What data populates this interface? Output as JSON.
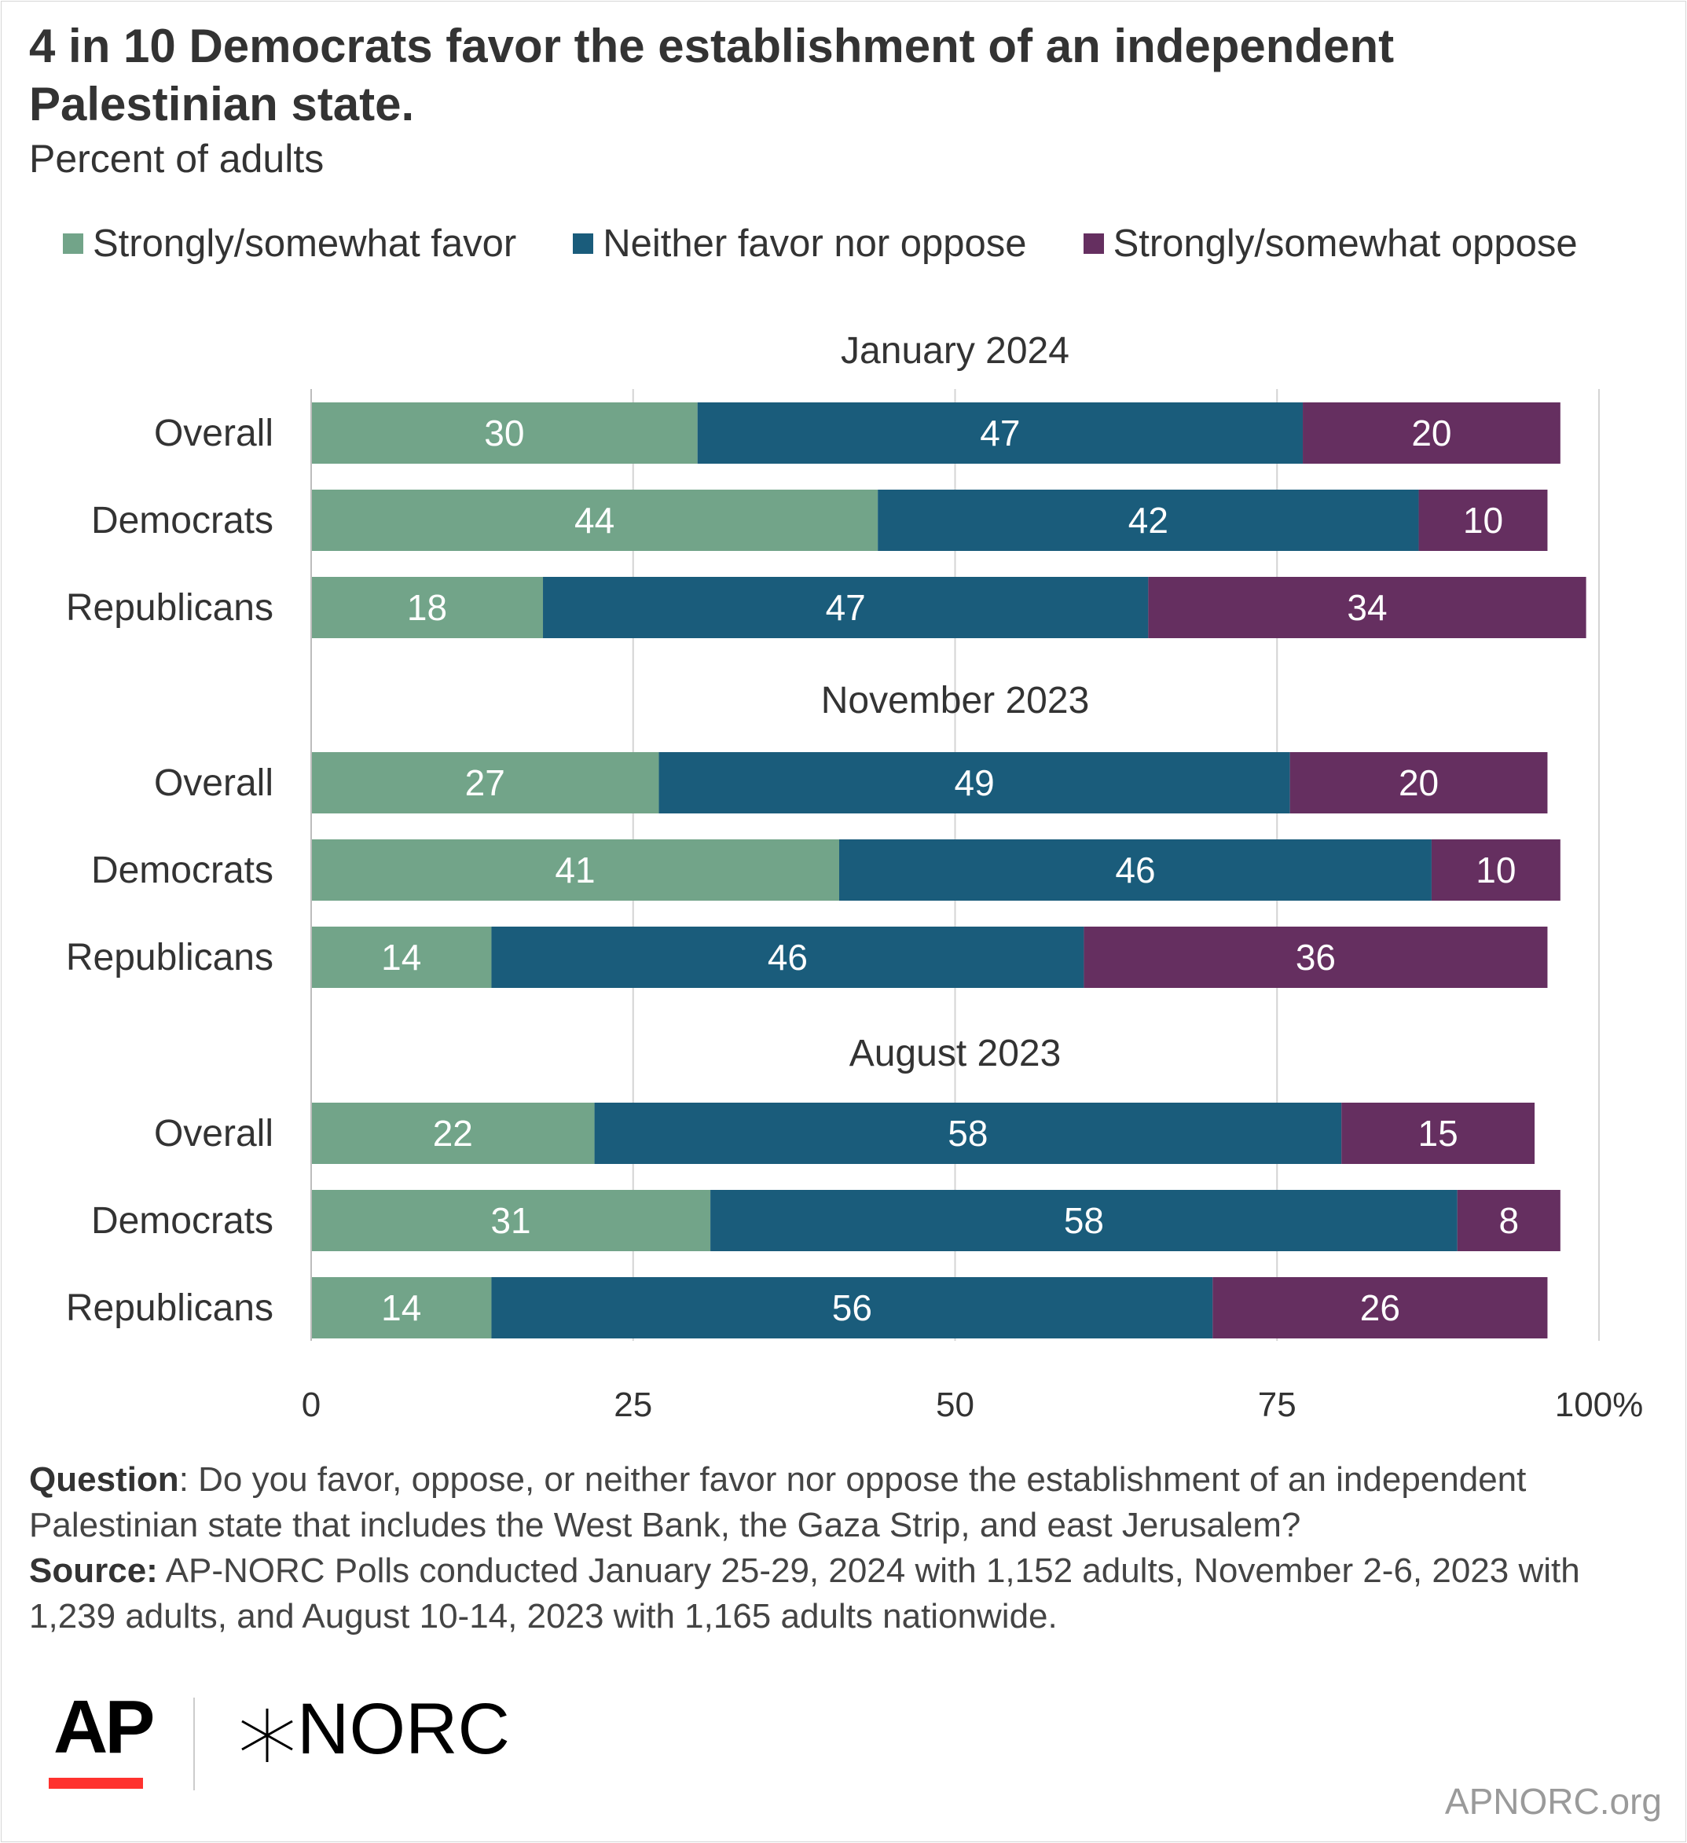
{
  "header": {
    "title": "4 in 10 Democrats favor the establishment of an independent Palestinian state.",
    "subtitle": "Percent of adults"
  },
  "chart_data": {
    "type": "bar",
    "orientation": "horizontal",
    "stacked": true,
    "xlim": [
      0,
      100
    ],
    "ticks": [
      "0",
      "25",
      "50",
      "75",
      "100%"
    ],
    "tick_values": [
      0,
      25,
      50,
      75,
      100
    ],
    "grid": true,
    "legend_position": "top",
    "series": [
      {
        "name": "Strongly/somewhat favor",
        "color": "#72a489"
      },
      {
        "name": "Neither favor nor oppose",
        "color": "#1a5c7b"
      },
      {
        "name": "Strongly/somewhat oppose",
        "color": "#652f60"
      }
    ],
    "groups": [
      {
        "label": "January 2024",
        "rows": [
          {
            "category": "Overall",
            "values": [
              30,
              47,
              20
            ]
          },
          {
            "category": "Democrats",
            "values": [
              44,
              42,
              10
            ]
          },
          {
            "category": "Republicans",
            "values": [
              18,
              47,
              34
            ]
          }
        ]
      },
      {
        "label": "November 2023",
        "rows": [
          {
            "category": "Overall",
            "values": [
              27,
              49,
              20
            ]
          },
          {
            "category": "Democrats",
            "values": [
              41,
              46,
              10
            ]
          },
          {
            "category": "Republicans",
            "values": [
              14,
              46,
              36
            ]
          }
        ]
      },
      {
        "label": "August 2023",
        "rows": [
          {
            "category": "Overall",
            "values": [
              22,
              58,
              15
            ]
          },
          {
            "category": "Democrats",
            "values": [
              31,
              58,
              8
            ]
          },
          {
            "category": "Republicans",
            "values": [
              14,
              56,
              26
            ]
          }
        ]
      }
    ]
  },
  "notes": {
    "question_label": "Question",
    "question_text": ": Do you favor, oppose, or neither favor nor oppose the establishment of an independent Palestinian state that includes the West Bank, the Gaza Strip, and east Jerusalem?",
    "source_label": "Source:",
    "source_text": " AP-NORC Polls conducted January 25-29, 2024 with 1,152 adults, November 2-6, 2023 with 1,239 adults, and August 10-14, 2023 with 1,165 adults nationwide."
  },
  "branding": {
    "ap_logo": "AP",
    "norc_logo": "NORC",
    "norc_mark_icon": "norc-star-icon",
    "site": "APNORC.org"
  }
}
